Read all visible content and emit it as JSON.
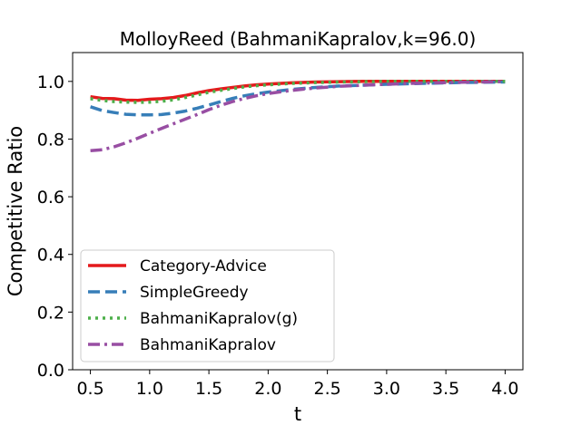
{
  "chart_data": {
    "type": "line",
    "title": "MolloyReed (BahmaniKapralov,k=96.0)",
    "xlabel": "t",
    "ylabel": "Competitive Ratio",
    "xlim": [
      0.35,
      4.15
    ],
    "ylim": [
      0.0,
      1.1
    ],
    "xticks": [
      0.5,
      1.0,
      1.5,
      2.0,
      2.5,
      3.0,
      3.5,
      4.0
    ],
    "xtick_labels": [
      "0.5",
      "1.0",
      "1.5",
      "2.0",
      "2.5",
      "3.0",
      "3.5",
      "4.0"
    ],
    "yticks": [
      0.0,
      0.2,
      0.4,
      0.6,
      0.8,
      1.0
    ],
    "ytick_labels": [
      "0.0",
      "0.2",
      "0.4",
      "0.6",
      "0.8",
      "1.0"
    ],
    "grid": false,
    "legend_position": "lower-left",
    "x": [
      0.5,
      0.6,
      0.7,
      0.8,
      0.9,
      1.0,
      1.1,
      1.2,
      1.3,
      1.4,
      1.5,
      1.6,
      1.7,
      1.8,
      1.9,
      2.0,
      2.2,
      2.4,
      2.6,
      2.8,
      3.0,
      3.2,
      3.4,
      3.6,
      3.8,
      4.0
    ],
    "series": [
      {
        "name": "Category-Advice",
        "color": "#e41a1c",
        "dash": "solid",
        "values": [
          0.947,
          0.941,
          0.94,
          0.935,
          0.934,
          0.938,
          0.94,
          0.944,
          0.951,
          0.96,
          0.968,
          0.974,
          0.979,
          0.984,
          0.988,
          0.991,
          0.995,
          0.998,
          0.999,
          1.0,
          1.0,
          1.0,
          1.0,
          1.0,
          1.0,
          1.0
        ]
      },
      {
        "name": "SimpleGreedy",
        "color": "#377eb8",
        "dash": "dashed",
        "values": [
          0.912,
          0.899,
          0.892,
          0.886,
          0.884,
          0.884,
          0.885,
          0.89,
          0.897,
          0.907,
          0.918,
          0.93,
          0.941,
          0.95,
          0.957,
          0.963,
          0.972,
          0.979,
          0.984,
          0.987,
          0.99,
          0.992,
          0.994,
          0.996,
          0.997,
          0.998
        ]
      },
      {
        "name": "BahmaniKapralov(g)",
        "color": "#4daf4a",
        "dash": "dotted",
        "values": [
          0.94,
          0.934,
          0.93,
          0.928,
          0.927,
          0.928,
          0.931,
          0.936,
          0.944,
          0.953,
          0.962,
          0.969,
          0.975,
          0.981,
          0.985,
          0.988,
          0.993,
          0.996,
          0.998,
          0.999,
          1.0,
          1.0,
          1.0,
          1.0,
          1.0,
          1.0
        ]
      },
      {
        "name": "BahmaniKapralov",
        "color": "#984ea3",
        "dash": "dashdot",
        "values": [
          0.76,
          0.763,
          0.773,
          0.787,
          0.803,
          0.82,
          0.837,
          0.853,
          0.869,
          0.885,
          0.902,
          0.917,
          0.93,
          0.941,
          0.95,
          0.958,
          0.969,
          0.977,
          0.983,
          0.987,
          0.99,
          0.993,
          0.995,
          0.997,
          0.998,
          0.999
        ]
      }
    ]
  }
}
